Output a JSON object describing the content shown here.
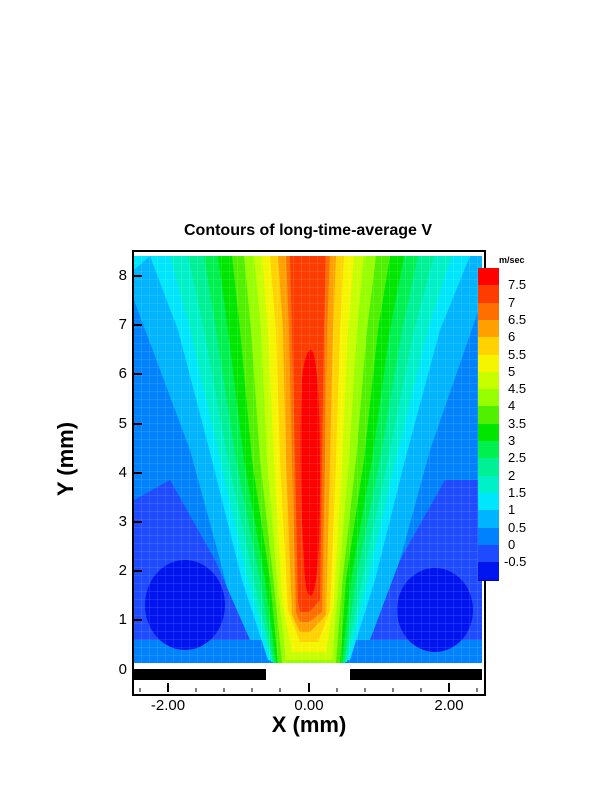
{
  "chart_data": {
    "type": "heatmap",
    "subtype": "filled-contour",
    "title": "Contours of long-time-average V",
    "xlabel": "X (mm)",
    "ylabel": "Y (mm)",
    "xlim": [
      -2.5,
      2.5
    ],
    "ylim": [
      -0.5,
      8.5
    ],
    "x_ticks": [
      -2.0,
      0.0,
      2.0
    ],
    "x_tick_labels": [
      "-2.00",
      "0.00",
      "2.00"
    ],
    "y_ticks": [
      0,
      1,
      2,
      3,
      4,
      5,
      6,
      7,
      8
    ],
    "y_tick_labels": [
      "0",
      "1",
      "2",
      "3",
      "4",
      "5",
      "6",
      "7",
      "8"
    ],
    "grid": true,
    "colorbar": {
      "title": "m/sec",
      "position": "right",
      "levels": [
        7.5,
        7,
        6.5,
        6,
        5.5,
        5,
        4.5,
        4,
        3.5,
        3,
        2.5,
        2,
        1.5,
        1,
        0.5,
        0,
        -0.5
      ],
      "labels": [
        "7.5",
        "7",
        "6.5",
        "6",
        "5.5",
        "5",
        "4.5",
        "4",
        "3.5",
        "3",
        "2.5",
        "2",
        "1.5",
        "1",
        "0.5",
        "0",
        "-0.5"
      ],
      "colors": [
        "#ff0000",
        "#ff3c00",
        "#ff6e00",
        "#ffa000",
        "#ffd200",
        "#f5f500",
        "#c8ff00",
        "#96ff00",
        "#50f000",
        "#00e600",
        "#00f050",
        "#00f096",
        "#00f0c8",
        "#00e6ff",
        "#00b4ff",
        "#0082ff",
        "#1e4bff",
        "#0014f0"
      ]
    },
    "features": {
      "jet_core_max": "~7.5 m/sec at X=0, Y≈1.5–6.5 mm",
      "nozzle_walls": [
        {
          "x": [
            -2.5,
            -0.6
          ],
          "y": -0.1
        },
        {
          "x": [
            0.6,
            2.5
          ],
          "y": -0.1
        }
      ],
      "nozzle_opening_x": [
        -0.6,
        0.6
      ],
      "recirculation_zones": [
        {
          "x": -1.6,
          "y": 1.4,
          "v": "< -0.5"
        },
        {
          "x": 1.6,
          "y": 1.4,
          "v": "< -0.5"
        }
      ],
      "ambient_far_field": "~0 to 0.5 m/sec"
    }
  }
}
